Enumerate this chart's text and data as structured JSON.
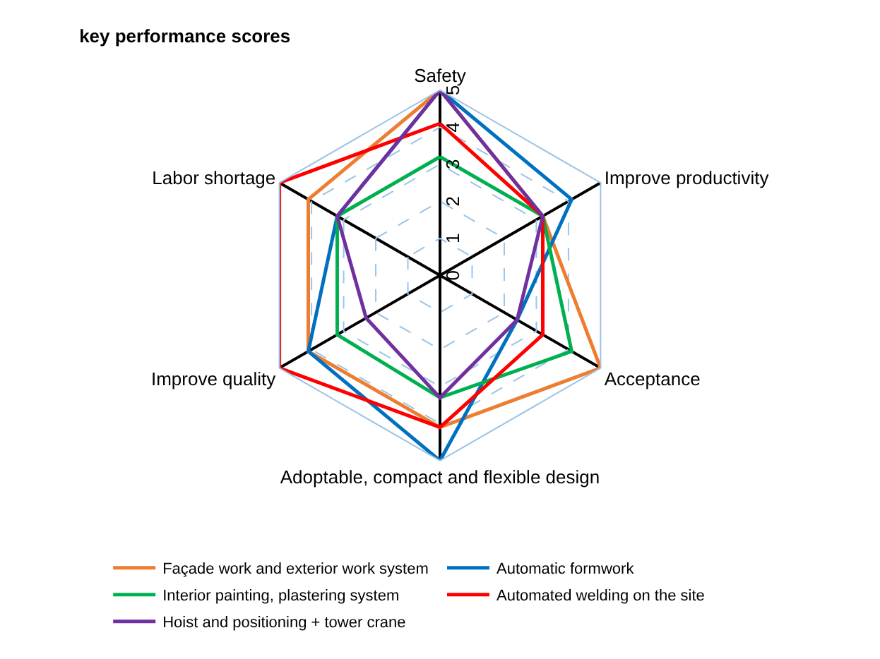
{
  "chart_data": {
    "type": "radar",
    "title": "key performance scores",
    "categories": [
      "Safety",
      "Improve productivity",
      "Acceptance",
      "Adoptable, compact and flexible design",
      "Improve quality",
      "Labor shortage"
    ],
    "series": [
      {
        "name": "Façade work and exterior work system",
        "color": "#ed7d31",
        "values": [
          5,
          3.2,
          5,
          4.1,
          4.1,
          4.1
        ]
      },
      {
        "name": "Automatic formwork",
        "color": "#0070c0",
        "values": [
          5,
          4.1,
          2.4,
          5,
          4.1,
          3.2
        ]
      },
      {
        "name": "Interior painting, plastering system",
        "color": "#00b050",
        "values": [
          3.2,
          3.2,
          4.1,
          3.3,
          3.2,
          3.2
        ]
      },
      {
        "name": "Automated welding on the site",
        "color": "#ff0000",
        "values": [
          4.1,
          3.2,
          3.2,
          4.1,
          5,
          5
        ]
      },
      {
        "name": "Hoist and positioning + tower crane",
        "color": "#7030a0",
        "values": [
          5,
          3.2,
          2.4,
          3.3,
          2.3,
          3.2
        ]
      }
    ],
    "ylim": [
      0,
      5
    ],
    "yticks": [
      0,
      1,
      2,
      3,
      4,
      5
    ],
    "grid": true,
    "legend": "bottom",
    "marker": "none",
    "line_style": "solid"
  }
}
